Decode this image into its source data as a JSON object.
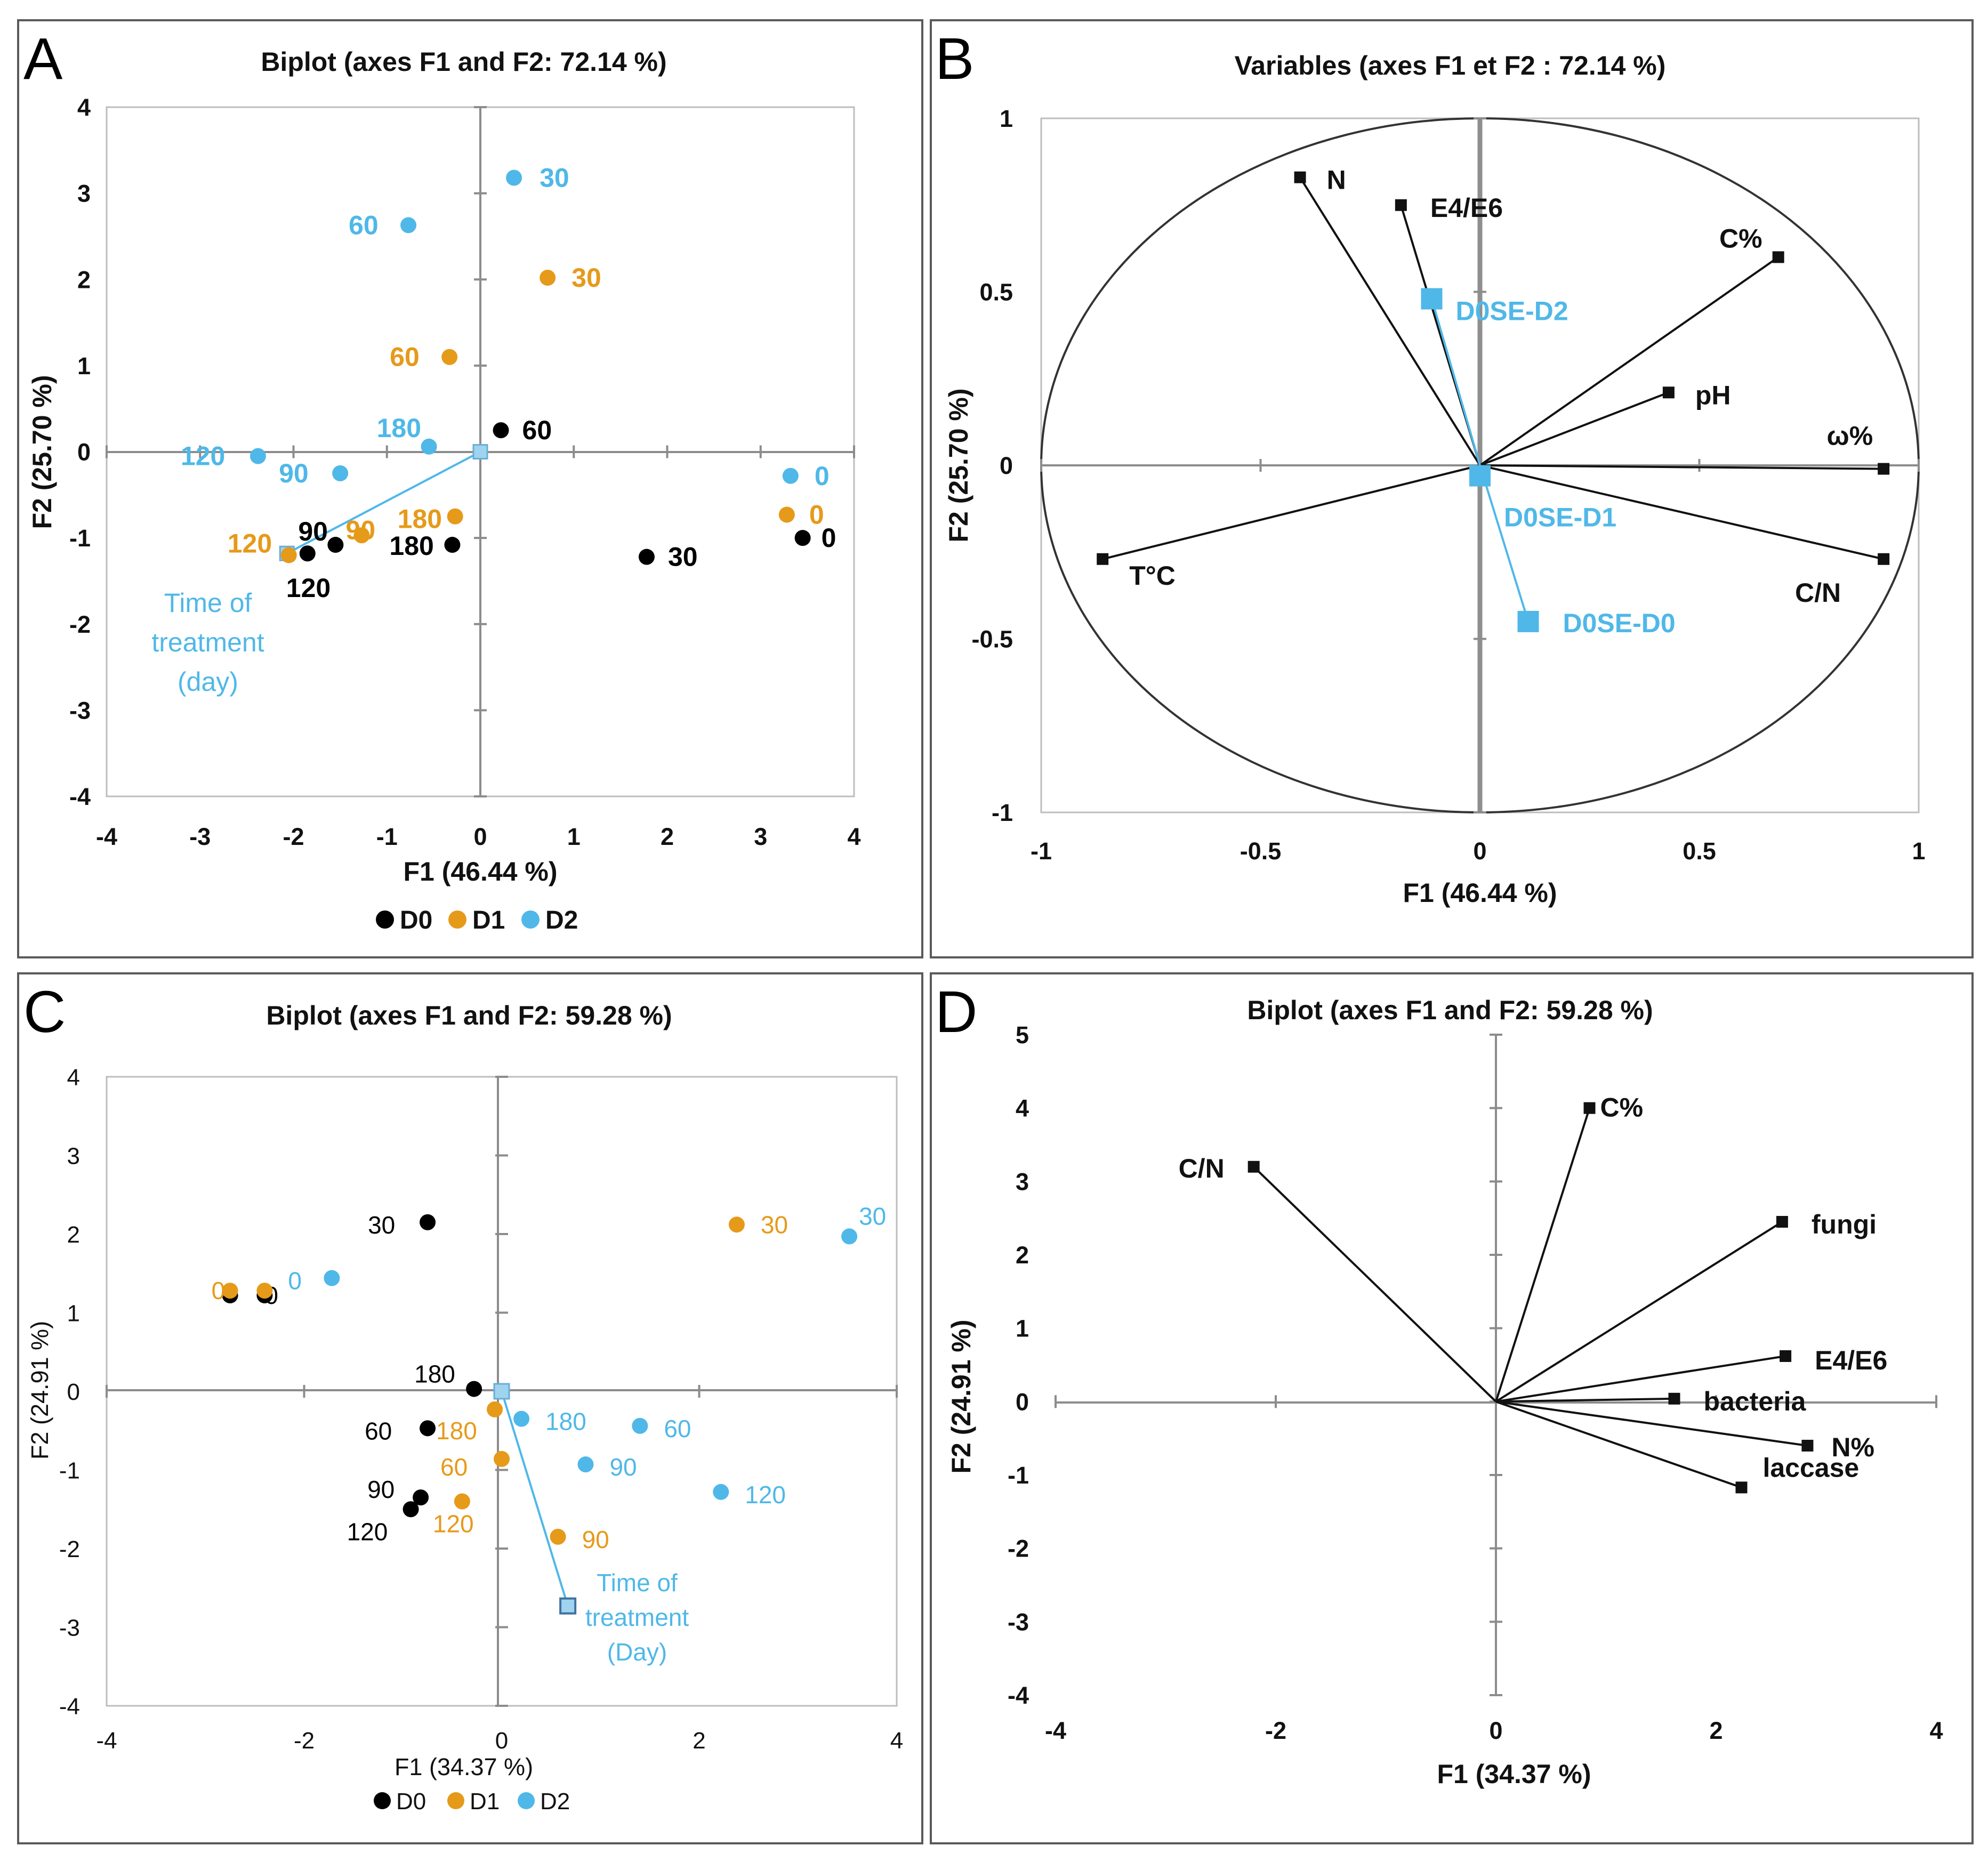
{
  "panels": {
    "A": "A",
    "B": "B",
    "C": "C",
    "D": "D"
  },
  "colors": {
    "D0": "#000000",
    "D1": "#E69A1A",
    "D2": "#4FB8E8",
    "vector": "#111111",
    "axis": "#8c8c8c"
  },
  "chart_data": [
    {
      "id": "A",
      "type": "scatter",
      "title": "Biplot (axes F1 and F2: 72.14 %)",
      "xlabel": "F1 (46.44 %)",
      "ylabel": "F2 (25.70 %)",
      "xlim": [
        -4,
        4
      ],
      "ylim": [
        -4,
        4
      ],
      "xticks": [
        "-4",
        "-3",
        "-2",
        "-1",
        "0",
        "1",
        "2",
        "3",
        "4"
      ],
      "yticks": [
        "4",
        "3",
        "2",
        "1",
        "0",
        "-1",
        "-2",
        "-3",
        "-4"
      ],
      "legend": [
        "D0",
        "D1",
        "D2"
      ],
      "series": [
        {
          "name": "D0",
          "points": [
            {
              "x": 3.45,
              "y": -1.0,
              "label": "0"
            },
            {
              "x": 1.78,
              "y": -1.22,
              "label": "30"
            },
            {
              "x": 0.22,
              "y": 0.25,
              "label": "60"
            },
            {
              "x": -1.55,
              "y": -1.08,
              "label": "90"
            },
            {
              "x": -1.85,
              "y": -1.18,
              "label": "120"
            },
            {
              "x": -0.3,
              "y": -1.08,
              "label": "180"
            }
          ]
        },
        {
          "name": "D1",
          "points": [
            {
              "x": 3.28,
              "y": -0.73,
              "label": "0"
            },
            {
              "x": 0.72,
              "y": 2.02,
              "label": "30"
            },
            {
              "x": -0.33,
              "y": 1.1,
              "label": "60"
            },
            {
              "x": -1.27,
              "y": -0.97,
              "label": "90"
            },
            {
              "x": -2.05,
              "y": -1.2,
              "label": "120"
            },
            {
              "x": -0.27,
              "y": -0.75,
              "label": "180"
            }
          ]
        },
        {
          "name": "D2",
          "points": [
            {
              "x": 3.32,
              "y": -0.28,
              "label": "0"
            },
            {
              "x": 0.36,
              "y": 3.18,
              "label": "30"
            },
            {
              "x": -0.77,
              "y": 2.63,
              "label": "60"
            },
            {
              "x": -1.5,
              "y": -0.25,
              "label": "90"
            },
            {
              "x": -2.38,
              "y": -0.05,
              "label": "120"
            },
            {
              "x": -0.55,
              "y": 0.06,
              "label": "180"
            }
          ]
        }
      ],
      "vector": {
        "from": [
          0,
          0
        ],
        "to": [
          -2.07,
          -1.18
        ]
      },
      "annotation": [
        "Time of",
        "treatment",
        "(day)"
      ]
    },
    {
      "id": "B",
      "type": "scatter",
      "title": "Variables (axes F1 et F2 : 72.14 %)",
      "xlabel": "F1 (46.44 %)",
      "ylabel": "F2 (25.70 %)",
      "xlim": [
        -1,
        1
      ],
      "ylim": [
        -1,
        1
      ],
      "xticks": [
        "-1",
        "-0.5",
        "0",
        "0.5",
        "1"
      ],
      "yticks": [
        "1",
        "0.5",
        "0",
        "-0.5",
        "-1"
      ],
      "variables": [
        {
          "name": "N",
          "x": -0.41,
          "y": 0.83
        },
        {
          "name": "E4/E6",
          "x": -0.18,
          "y": 0.75
        },
        {
          "name": "C%",
          "x": 0.68,
          "y": 0.6
        },
        {
          "name": "pH",
          "x": 0.43,
          "y": 0.21
        },
        {
          "name": "ω%",
          "x": 0.92,
          "y": -0.01
        },
        {
          "name": "C/N",
          "x": 0.92,
          "y": -0.27
        },
        {
          "name": "T°C",
          "x": -0.86,
          "y": -0.27
        }
      ],
      "supplementary": [
        {
          "name": "D0SE-D2",
          "x": -0.11,
          "y": 0.48
        },
        {
          "name": "D0SE-D1",
          "x": 0.0,
          "y": -0.03
        },
        {
          "name": "D0SE-D0",
          "x": 0.11,
          "y": -0.45
        }
      ]
    },
    {
      "id": "C",
      "type": "scatter",
      "title": "Biplot (axes F1 and F2: 59.28 %)",
      "xlabel": "F1 (34.37 %)",
      "ylabel": "F2 (24.91 %)",
      "xlim": [
        -4,
        4
      ],
      "ylim": [
        -4,
        4
      ],
      "xticks": [
        "-4",
        "-2",
        "0",
        "2",
        "4"
      ],
      "yticks": [
        "4",
        "3",
        "2",
        "1",
        "0",
        "-1",
        "-2",
        "-3",
        "-4"
      ],
      "legend": [
        "D0",
        "D1",
        "D2"
      ],
      "series": [
        {
          "name": "D0",
          "points": [
            {
              "x": -2.75,
              "y": 1.22,
              "label": ""
            },
            {
              "x": -2.4,
              "y": 1.22,
              "label": "0"
            },
            {
              "x": -0.75,
              "y": 2.15,
              "label": "30"
            },
            {
              "x": -0.75,
              "y": -0.47,
              "label": "60"
            },
            {
              "x": -0.82,
              "y": -1.35,
              "label": "90"
            },
            {
              "x": -0.92,
              "y": -1.5,
              "label": "120"
            },
            {
              "x": -0.28,
              "y": 0.03,
              "label": "180"
            }
          ]
        },
        {
          "name": "D1",
          "points": [
            {
              "x": -2.75,
              "y": 1.28,
              "label": "0"
            },
            {
              "x": -2.4,
              "y": 1.28,
              "label": ""
            },
            {
              "x": 2.38,
              "y": 2.12,
              "label": "30"
            },
            {
              "x": 0.0,
              "y": -0.86,
              "label": "60"
            },
            {
              "x": 0.57,
              "y": -1.85,
              "label": "90"
            },
            {
              "x": -0.4,
              "y": -1.4,
              "label": "120"
            },
            {
              "x": -0.07,
              "y": -0.23,
              "label": "180"
            }
          ]
        },
        {
          "name": "D2",
          "points": [
            {
              "x": -1.72,
              "y": 1.44,
              "label": "0"
            },
            {
              "x": 3.52,
              "y": 1.97,
              "label": "30"
            },
            {
              "x": 1.4,
              "y": -0.44,
              "label": "60"
            },
            {
              "x": 0.85,
              "y": -0.93,
              "label": "90"
            },
            {
              "x": 2.22,
              "y": -1.28,
              "label": "120"
            },
            {
              "x": 0.2,
              "y": -0.35,
              "label": "180"
            }
          ]
        }
      ],
      "vector": {
        "from": [
          0,
          0
        ],
        "to": [
          0.67,
          -2.73
        ]
      },
      "annotation": [
        "Time of",
        "treatment",
        "(Day)"
      ]
    },
    {
      "id": "D",
      "type": "scatter",
      "title": "Biplot (axes F1 and F2: 59.28 %)",
      "xlabel": "F1 (34.37 %)",
      "ylabel": "F2 (24.91 %)",
      "xlim": [
        -4,
        4
      ],
      "ylim": [
        -4,
        5
      ],
      "xticks": [
        "-4",
        "-2",
        "0",
        "2",
        "4"
      ],
      "yticks": [
        "5",
        "4",
        "3",
        "2",
        "1",
        "0",
        "-1",
        "-2",
        "-3",
        "-4"
      ],
      "variables": [
        {
          "name": "C/N",
          "x": -2.2,
          "y": 3.2
        },
        {
          "name": "C%",
          "x": 0.85,
          "y": 4.0
        },
        {
          "name": "fungi",
          "x": 2.6,
          "y": 2.45
        },
        {
          "name": "E4/E6",
          "x": 2.63,
          "y": 0.62
        },
        {
          "name": "bacteria",
          "x": 1.62,
          "y": 0.04
        },
        {
          "name": "N%",
          "x": 2.83,
          "y": -0.6
        },
        {
          "name": "laccase",
          "x": 2.23,
          "y": -1.17
        }
      ]
    }
  ]
}
